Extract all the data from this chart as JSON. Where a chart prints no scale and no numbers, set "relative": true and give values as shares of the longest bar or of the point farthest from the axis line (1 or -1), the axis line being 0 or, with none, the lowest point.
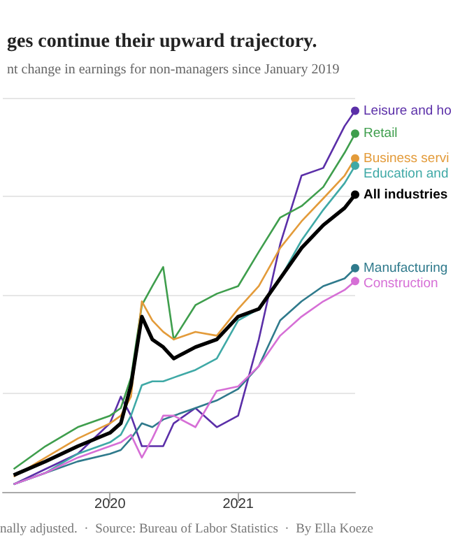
{
  "chart_data": {
    "type": "line",
    "title": "ges continue their upward trajectory.",
    "subtitle": "nt change in earnings for non-managers since January 2019",
    "annotations": [
      "nally adjusted.  ·  Source: Bureau of Labor Statistics  ·  By Ella Koeze"
    ],
    "relative": true,
    "grid": "y",
    "legend": "right",
    "x": [
      "2019-04",
      "2019-07",
      "2019-10",
      "2020-01",
      "2020-02",
      "2020-03",
      "2020-04",
      "2020-05",
      "2020-06",
      "2020-07",
      "2020-09",
      "2020-11",
      "2021-01",
      "2021-03",
      "2021-05",
      "2021-07",
      "2021-09",
      "2021-11",
      "2021-12"
    ],
    "xlim": [
      "2019-03",
      "2021-12"
    ],
    "xticks": [
      "2020",
      "2021"
    ],
    "series": [
      {
        "name": "Leisure and ho",
        "color": "#5b2fa8",
        "values": [
          0.02,
          0.06,
          0.1,
          0.18,
          0.25,
          0.2,
          0.12,
          0.12,
          0.12,
          0.18,
          0.22,
          0.17,
          0.2,
          0.4,
          0.65,
          0.83,
          0.85,
          0.96,
          1
        ]
      },
      {
        "name": "Retail",
        "color": "#3f9e4d",
        "values": [
          0.06,
          0.12,
          0.17,
          0.2,
          0.22,
          0.3,
          0.49,
          0.54,
          0.59,
          0.4,
          0.49,
          0.52,
          0.54,
          0.63,
          0.72,
          0.75,
          0.8,
          0.89,
          0.94
        ]
      },
      {
        "name": "Business servi",
        "color": "#e39b3a",
        "values": [
          0.04,
          0.09,
          0.14,
          0.18,
          0.2,
          0.25,
          0.5,
          0.45,
          0.42,
          0.4,
          0.42,
          0.41,
          0.48,
          0.54,
          0.64,
          0.71,
          0.77,
          0.83,
          0.875
        ]
      },
      {
        "name": "Education and",
        "color": "#3fa9a6",
        "values": [
          0.02,
          0.05,
          0.1,
          0.13,
          0.15,
          0.2,
          0.28,
          0.29,
          0.29,
          0.3,
          0.32,
          0.35,
          0.45,
          0.48,
          0.56,
          0.66,
          0.74,
          0.81,
          0.856
        ]
      },
      {
        "name": "All industries",
        "color": "#000000",
        "values": [
          0.044,
          0.08,
          0.12,
          0.155,
          0.18,
          0.28,
          0.46,
          0.4,
          0.38,
          0.35,
          0.38,
          0.4,
          0.46,
          0.48,
          0.56,
          0.64,
          0.7,
          0.745,
          0.78
        ]
      },
      {
        "name": "Manufacturing",
        "color": "#2f7a8c",
        "values": [
          0.02,
          0.05,
          0.08,
          0.1,
          0.11,
          0.14,
          0.18,
          0.17,
          0.19,
          0.2,
          0.22,
          0.24,
          0.27,
          0.33,
          0.45,
          0.5,
          0.54,
          0.56,
          0.587
        ]
      },
      {
        "name": "Construction",
        "color": "#d66fd6",
        "values": [
          0.02,
          0.05,
          0.09,
          0.12,
          0.13,
          0.15,
          0.09,
          0.14,
          0.2,
          0.2,
          0.17,
          0.265,
          0.277,
          0.33,
          0.41,
          0.46,
          0.5,
          0.53,
          0.553
        ]
      }
    ]
  }
}
